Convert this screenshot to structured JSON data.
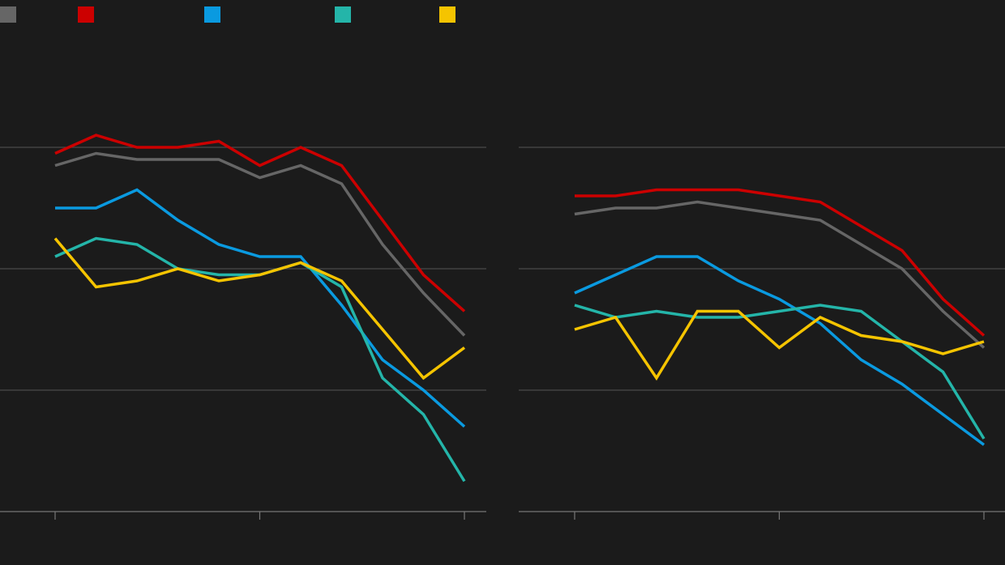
{
  "chart_data": [
    {
      "type": "line",
      "title": "",
      "xlabel": "",
      "ylabel": "",
      "x": [
        1,
        2,
        3,
        4,
        5,
        6,
        7,
        8,
        9,
        10,
        11
      ],
      "xlim": [
        1,
        11
      ],
      "x_ticks": [
        1,
        6,
        11
      ],
      "ylim": [
        0,
        3
      ],
      "y_gridlines": [
        0,
        1,
        2,
        3
      ],
      "grid": true,
      "series": [
        {
          "color": "#666666",
          "values": [
            2.85,
            2.95,
            2.9,
            2.9,
            2.9,
            2.75,
            2.85,
            2.7,
            2.2,
            1.8,
            1.45
          ]
        },
        {
          "color": "#cc0000",
          "values": [
            2.95,
            3.1,
            3.0,
            3.0,
            3.05,
            2.85,
            3.0,
            2.85,
            2.4,
            1.95,
            1.65
          ]
        },
        {
          "color": "#0a9ae0",
          "values": [
            2.5,
            2.5,
            2.65,
            2.4,
            2.2,
            2.1,
            2.1,
            1.7,
            1.25,
            1.0,
            0.7
          ]
        },
        {
          "color": "#24b5a9",
          "values": [
            2.1,
            2.25,
            2.2,
            2.0,
            1.95,
            1.95,
            2.05,
            1.85,
            1.1,
            0.8,
            0.25
          ]
        },
        {
          "color": "#f5c400",
          "values": [
            2.25,
            1.85,
            1.9,
            2.0,
            1.9,
            1.95,
            2.05,
            1.9,
            1.5,
            1.1,
            1.35
          ]
        }
      ]
    },
    {
      "type": "line",
      "title": "",
      "xlabel": "",
      "ylabel": "",
      "x": [
        1,
        2,
        3,
        4,
        5,
        6,
        7,
        8,
        9,
        10,
        11
      ],
      "xlim": [
        1,
        11
      ],
      "x_ticks": [
        1,
        6,
        11
      ],
      "ylim": [
        0,
        3
      ],
      "y_gridlines": [
        0,
        1,
        2,
        3
      ],
      "grid": true,
      "series": [
        {
          "color": "#666666",
          "values": [
            2.45,
            2.5,
            2.5,
            2.55,
            2.5,
            2.45,
            2.4,
            2.2,
            2.0,
            1.65,
            1.35
          ]
        },
        {
          "color": "#cc0000",
          "values": [
            2.6,
            2.6,
            2.65,
            2.65,
            2.65,
            2.6,
            2.55,
            2.35,
            2.15,
            1.75,
            1.45
          ]
        },
        {
          "color": "#0a9ae0",
          "values": [
            1.8,
            1.95,
            2.1,
            2.1,
            1.9,
            1.75,
            1.55,
            1.25,
            1.05,
            0.8,
            0.55
          ]
        },
        {
          "color": "#24b5a9",
          "values": [
            1.7,
            1.6,
            1.65,
            1.6,
            1.6,
            1.65,
            1.7,
            1.65,
            1.4,
            1.15,
            0.6
          ]
        },
        {
          "color": "#f5c400",
          "values": [
            1.5,
            1.6,
            1.1,
            1.65,
            1.65,
            1.35,
            1.6,
            1.45,
            1.4,
            1.3,
            1.4
          ]
        }
      ]
    }
  ],
  "legend": {
    "placement": "top",
    "items": [
      {
        "color": "#666666"
      },
      {
        "color": "#cc0000"
      },
      {
        "color": "#0a9ae0"
      },
      {
        "color": "#24b5a9"
      },
      {
        "color": "#f5c400"
      }
    ]
  },
  "colors": {
    "background": "#1b1b1b",
    "gridline": "#4a4a4a",
    "axis": "#777777"
  }
}
